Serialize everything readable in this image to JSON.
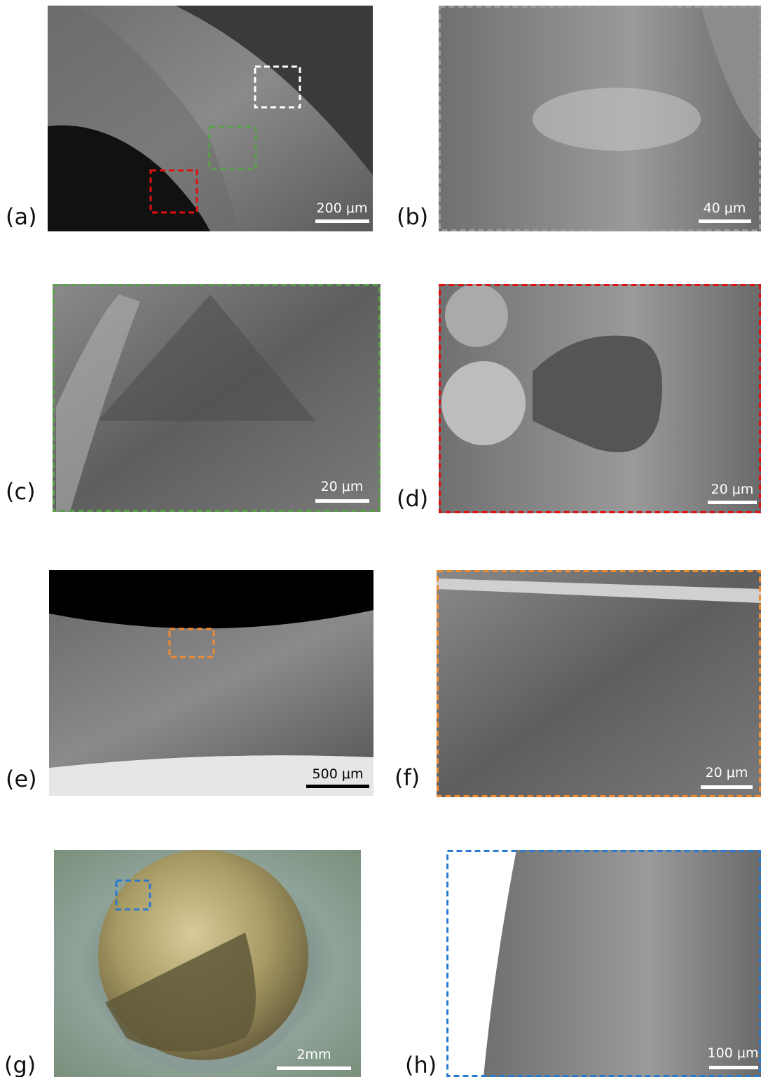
{
  "panels": [
    {
      "label": "(a)",
      "scale": "200 μm"
    },
    {
      "label": "(b)",
      "scale": "40 μm"
    },
    {
      "label": "(c)",
      "scale": "20 μm"
    },
    {
      "label": "(d)",
      "scale": "20 μm"
    },
    {
      "label": "(e)",
      "scale": "500 μm"
    },
    {
      "label": "(f)",
      "scale": "20 μm"
    },
    {
      "label": "(g)",
      "scale": "2mm"
    },
    {
      "label": "(h)",
      "scale": "100 μm"
    }
  ]
}
